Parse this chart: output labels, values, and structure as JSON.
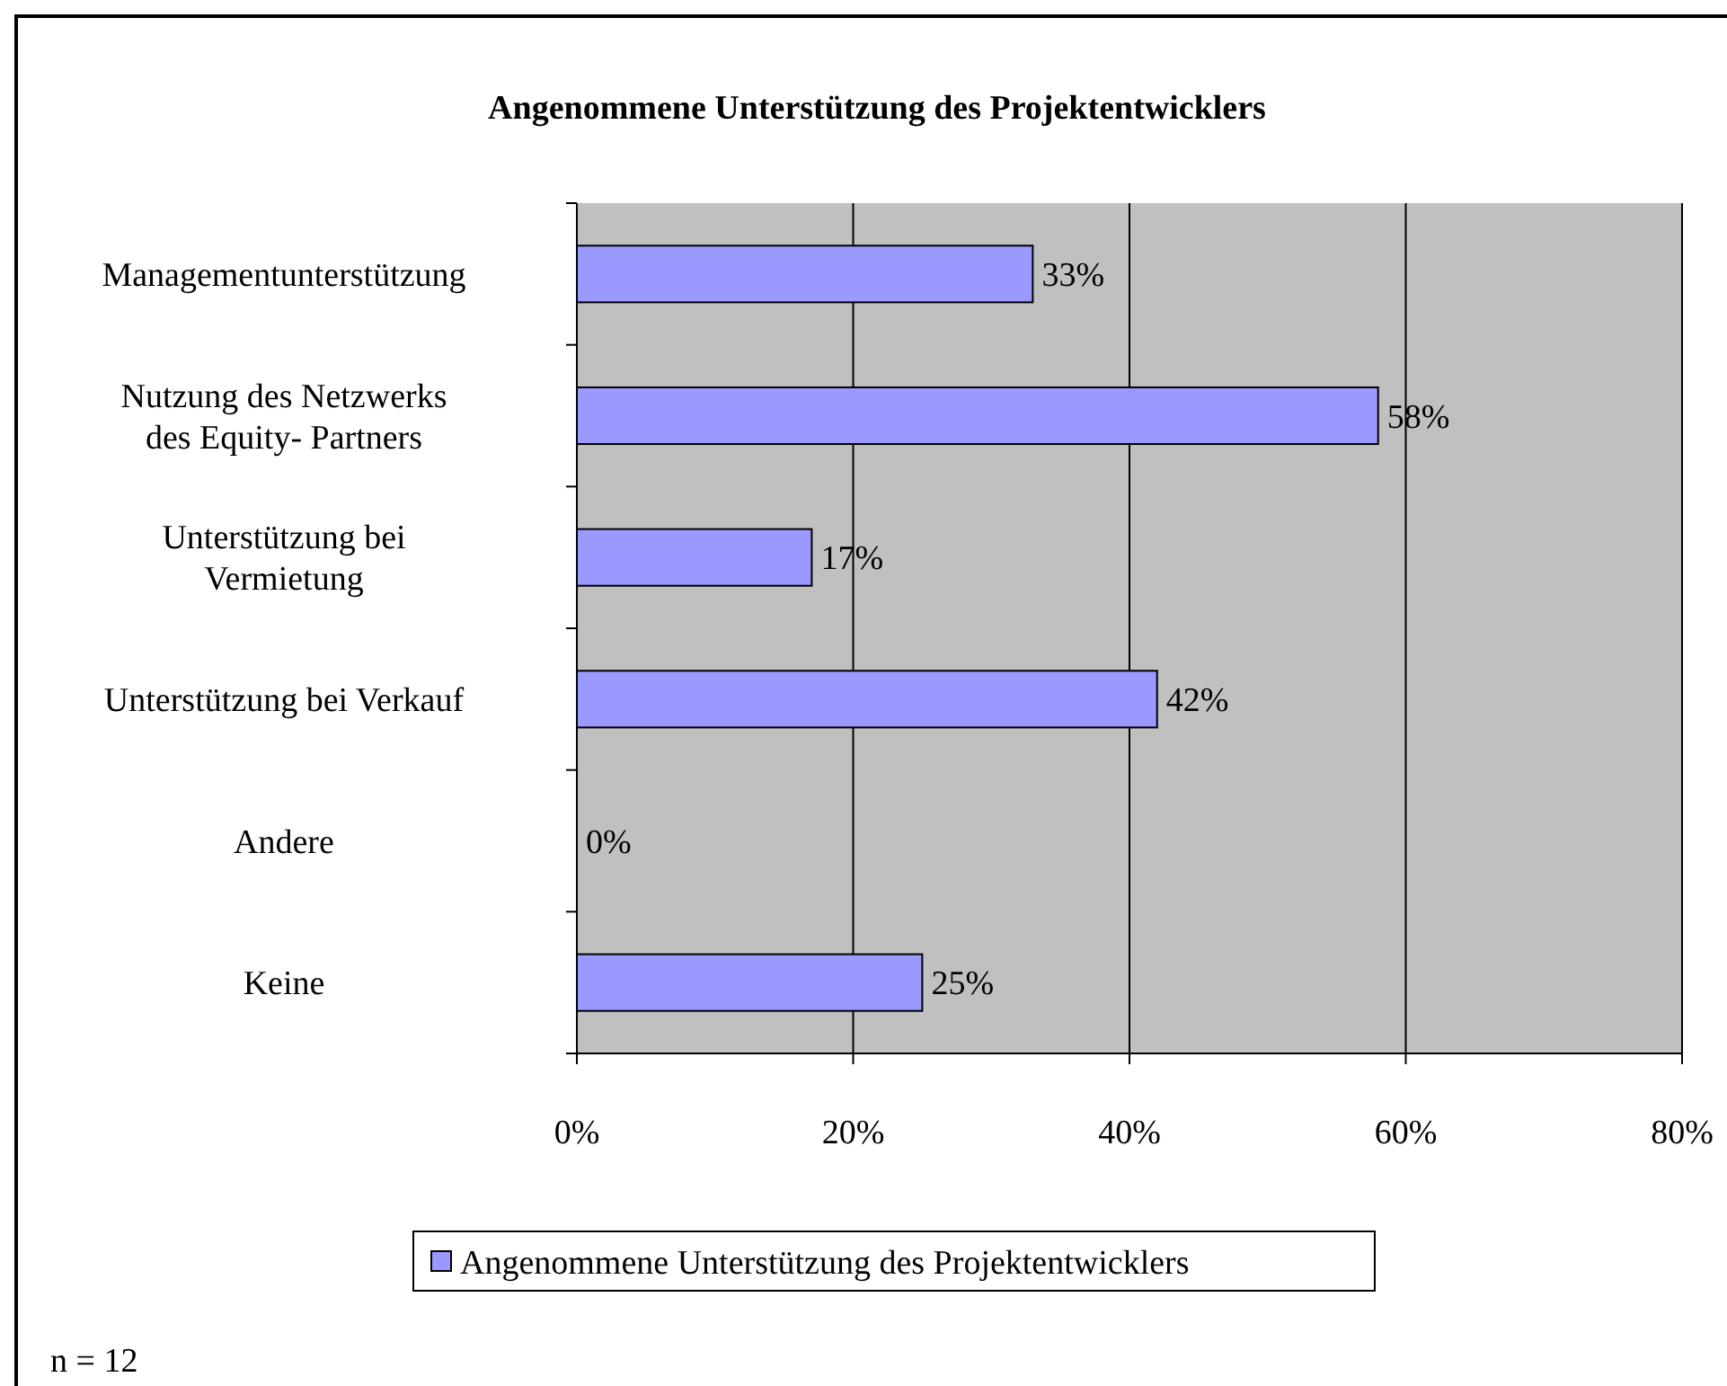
{
  "chart_data": {
    "type": "bar",
    "orientation": "horizontal",
    "title": "Angenommene Unterstützung des Projektentwicklers",
    "categories": [
      "Managementunterstützung",
      "Nutzung des Netzwerks\ndes Equity- Partners",
      "Unterstützung bei\nVermietung",
      "Unterstützung bei Verkauf",
      "Andere",
      "Keine"
    ],
    "series": [
      {
        "name": "Angenommene Unterstützung des Projektentwicklers",
        "color": "#9999ff",
        "values": [
          33,
          58,
          17,
          42,
          0,
          25
        ],
        "value_labels": [
          "33%",
          "58%",
          "17%",
          "42%",
          "0%",
          "25%"
        ]
      }
    ],
    "xlim": [
      0,
      80
    ],
    "xticks": [
      {
        "value": 0,
        "label": "0%"
      },
      {
        "value": 20,
        "label": "20%"
      },
      {
        "value": 40,
        "label": "40%"
      },
      {
        "value": 60,
        "label": "60%"
      },
      {
        "value": 80,
        "label": "80%"
      }
    ],
    "grid": "x",
    "legend": "bottom",
    "annotations": [
      "n = 12"
    ]
  }
}
